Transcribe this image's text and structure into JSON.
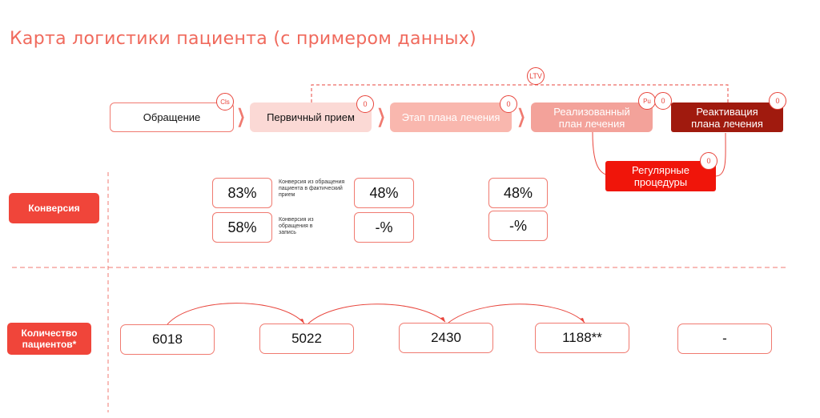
{
  "title": "Карта логистики пациента (с примером данных)",
  "ltv_label": "LTV",
  "stages": {
    "appeal": {
      "label": "Обращение",
      "badge": "Cls"
    },
    "primary": {
      "label": "Первичный прием",
      "badge": "0"
    },
    "plan_stage": {
      "label": "Этап плана лечения",
      "badge": "0"
    },
    "realized": {
      "label": "Реализованный план лечения",
      "badge_left": "Pu",
      "badge": "0"
    },
    "reactivation": {
      "label": "Реактивация плана лечения",
      "badge": "0"
    },
    "regular": {
      "label": "Регулярные процедуры",
      "badge": "0"
    }
  },
  "rows": {
    "conversion": "Конверсия",
    "patients": "Количество пациентов*"
  },
  "conversion": {
    "col1": {
      "top": "83%",
      "bottom": "58%"
    },
    "col2": {
      "top": "48%",
      "bottom": "-%"
    },
    "col3": {
      "top": "48%",
      "bottom": "-%"
    },
    "note_top": "Конверсия из обращения пациента в фактический прием",
    "note_bottom": "Конверсия из обращения в запись"
  },
  "counts": [
    "6018",
    "5022",
    "2430",
    "1188**",
    "-"
  ],
  "colors": {
    "accent": "#f0453a",
    "title": "#f06a5d",
    "stage_light": "#fbd9d5",
    "stage_mid": "#f9b7ae",
    "stage_strong": "#f3a29a",
    "stage_dark": "#a01a0e",
    "stage_red": "#f0150a"
  }
}
